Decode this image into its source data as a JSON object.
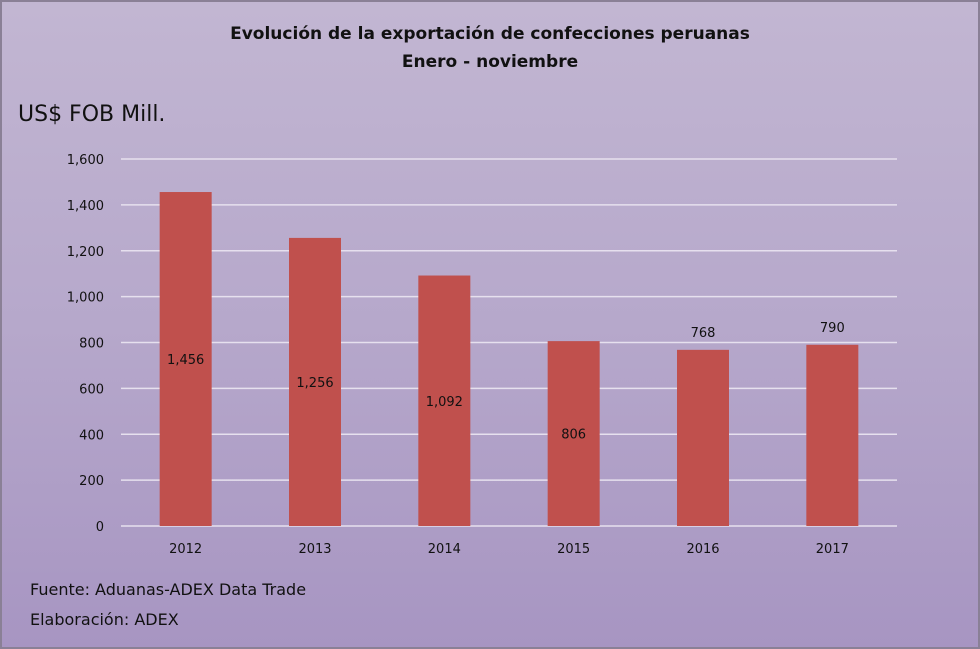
{
  "chart_data": {
    "type": "bar",
    "title": "Evolución de la exportación de confecciones peruanas",
    "subtitle": "Enero - noviembre",
    "ylabel": "US$ FOB Mill.",
    "xlabel": "",
    "categories": [
      "2012",
      "2013",
      "2014",
      "2015",
      "2016",
      "2017"
    ],
    "values": [
      1456,
      1256,
      1092,
      806,
      768,
      790
    ],
    "data_labels": [
      "1,456",
      "1,256",
      "1,092",
      "806",
      "768",
      "790"
    ],
    "ylim": [
      0,
      1600
    ],
    "yticks": [
      0,
      200,
      400,
      600,
      800,
      1000,
      1200,
      1400,
      1600
    ],
    "ytick_labels": [
      "0",
      "200",
      "400",
      "600",
      "800",
      "1,000",
      "1,200",
      "1,400",
      "1,600"
    ],
    "grid": true,
    "bar_color": "#c0504d",
    "background_color": "#b8aacc",
    "gridline_color": "#e6e0ee"
  },
  "footer": {
    "source": "Fuente: Aduanas-ADEX Data Trade",
    "elaboration": "Elaboración: ADEX"
  }
}
